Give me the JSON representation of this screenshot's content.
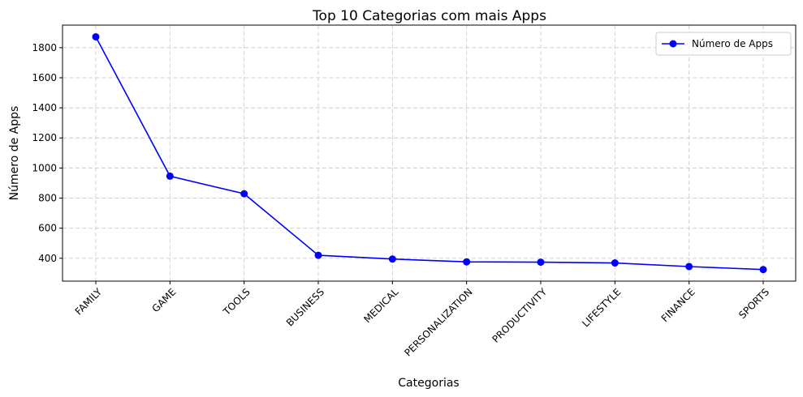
{
  "chart_data": {
    "type": "line",
    "title": "Top 10 Categorias com mais Apps",
    "xlabel": "Categorias",
    "ylabel": "Número de Apps",
    "categories": [
      "FAMILY",
      "GAME",
      "TOOLS",
      "BUSINESS",
      "MEDICAL",
      "PERSONALIZATION",
      "PRODUCTIVITY",
      "LIFESTYLE",
      "FINANCE",
      "SPORTS"
    ],
    "series": [
      {
        "name": "Número de Apps",
        "values": [
          1872,
          946,
          829,
          420,
          395,
          376,
          374,
          369,
          345,
          325
        ],
        "color": "#0000ff",
        "marker": "circle"
      }
    ],
    "ylim": [
      248,
      1950
    ],
    "yticks": [
      400,
      600,
      800,
      1000,
      1200,
      1400,
      1600,
      1800
    ],
    "grid": true,
    "legend_position": "top-right"
  }
}
